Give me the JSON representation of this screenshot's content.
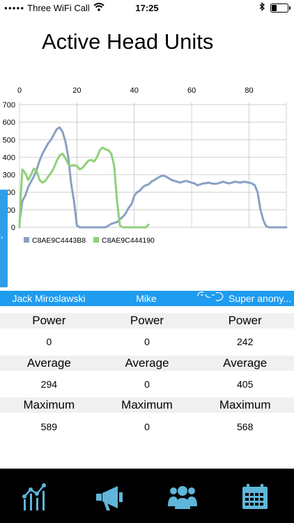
{
  "status_bar": {
    "carrier": "Three WiFi Call",
    "time": "17:25"
  },
  "header": {
    "title": "Active Head Units"
  },
  "chart_data": {
    "type": "line",
    "x_ticks": [
      0,
      20,
      40,
      60,
      80
    ],
    "y_ticks": [
      0,
      100,
      200,
      300,
      400,
      500,
      600,
      700
    ],
    "xlim": [
      0,
      93
    ],
    "ylim": [
      0,
      700
    ],
    "grid": true,
    "legend_position": "bottom-left",
    "series": [
      {
        "name": "C8AE9C4443B8",
        "color": "#8aa0c4",
        "points": [
          [
            0,
            30
          ],
          [
            1,
            150
          ],
          [
            2,
            180
          ],
          [
            3,
            230
          ],
          [
            4,
            260
          ],
          [
            5,
            290
          ],
          [
            6,
            330
          ],
          [
            7,
            380
          ],
          [
            8,
            420
          ],
          [
            9,
            450
          ],
          [
            10,
            480
          ],
          [
            11,
            500
          ],
          [
            12,
            530
          ],
          [
            13,
            560
          ],
          [
            14,
            570
          ],
          [
            15,
            545
          ],
          [
            16,
            490
          ],
          [
            17,
            400
          ],
          [
            18,
            250
          ],
          [
            19,
            150
          ],
          [
            20,
            10
          ],
          [
            21,
            0
          ],
          [
            30,
            0
          ],
          [
            31,
            10
          ],
          [
            32,
            20
          ],
          [
            33,
            25
          ],
          [
            34,
            30
          ],
          [
            35,
            45
          ],
          [
            36,
            60
          ],
          [
            37,
            80
          ],
          [
            38,
            110
          ],
          [
            39,
            130
          ],
          [
            40,
            180
          ],
          [
            41,
            200
          ],
          [
            42,
            210
          ],
          [
            43,
            230
          ],
          [
            44,
            240
          ],
          [
            45,
            245
          ],
          [
            46,
            260
          ],
          [
            47,
            270
          ],
          [
            48,
            280
          ],
          [
            49,
            290
          ],
          [
            50,
            295
          ],
          [
            51,
            290
          ],
          [
            52,
            280
          ],
          [
            53,
            270
          ],
          [
            54,
            265
          ],
          [
            55,
            260
          ],
          [
            56,
            255
          ],
          [
            57,
            260
          ],
          [
            58,
            265
          ],
          [
            59,
            260
          ],
          [
            60,
            255
          ],
          [
            61,
            250
          ],
          [
            62,
            240
          ],
          [
            63,
            245
          ],
          [
            64,
            250
          ],
          [
            65,
            252
          ],
          [
            66,
            255
          ],
          [
            67,
            250
          ],
          [
            68,
            248
          ],
          [
            69,
            250
          ],
          [
            70,
            255
          ],
          [
            71,
            260
          ],
          [
            72,
            255
          ],
          [
            73,
            250
          ],
          [
            74,
            255
          ],
          [
            75,
            260
          ],
          [
            76,
            258
          ],
          [
            77,
            255
          ],
          [
            78,
            260
          ],
          [
            79,
            258
          ],
          [
            80,
            255
          ],
          [
            81,
            250
          ],
          [
            82,
            240
          ],
          [
            83,
            200
          ],
          [
            84,
            100
          ],
          [
            85,
            40
          ],
          [
            86,
            5
          ],
          [
            87,
            0
          ],
          [
            93,
            0
          ]
        ]
      },
      {
        "name": "C8AE9C444190",
        "color": "#8fd07a",
        "points": [
          [
            0,
            0
          ],
          [
            0.5,
            200
          ],
          [
            1,
            330
          ],
          [
            2,
            310
          ],
          [
            3,
            270
          ],
          [
            4,
            300
          ],
          [
            5,
            335
          ],
          [
            6,
            320
          ],
          [
            7,
            270
          ],
          [
            8,
            255
          ],
          [
            9,
            265
          ],
          [
            10,
            290
          ],
          [
            11,
            310
          ],
          [
            12,
            340
          ],
          [
            13,
            380
          ],
          [
            14,
            410
          ],
          [
            15,
            420
          ],
          [
            16,
            395
          ],
          [
            17,
            360
          ],
          [
            18,
            350
          ],
          [
            19,
            355
          ],
          [
            20,
            350
          ],
          [
            21,
            330
          ],
          [
            22,
            340
          ],
          [
            23,
            360
          ],
          [
            24,
            380
          ],
          [
            25,
            385
          ],
          [
            26,
            375
          ],
          [
            27,
            400
          ],
          [
            28,
            440
          ],
          [
            29,
            455
          ],
          [
            30,
            445
          ],
          [
            31,
            440
          ],
          [
            32,
            420
          ],
          [
            33,
            350
          ],
          [
            34,
            150
          ],
          [
            35,
            10
          ],
          [
            36,
            0
          ],
          [
            44,
            0
          ],
          [
            45,
            15
          ]
        ]
      }
    ]
  },
  "names": [
    "Jack Miroslawski",
    "Mike",
    "Super anony..."
  ],
  "stats": {
    "power_label": "Power",
    "average_label": "Average",
    "maximum_label": "Maximum",
    "power_values": [
      "0",
      "0",
      "242"
    ],
    "average_values": [
      "294",
      "0",
      "405"
    ],
    "maximum_values": [
      "589",
      "0",
      "568"
    ]
  },
  "tab_bar": {
    "icons": [
      "chart-icon",
      "megaphone-icon",
      "group-icon",
      "calendar-icon"
    ],
    "accent_color": "#5fb6d9"
  }
}
